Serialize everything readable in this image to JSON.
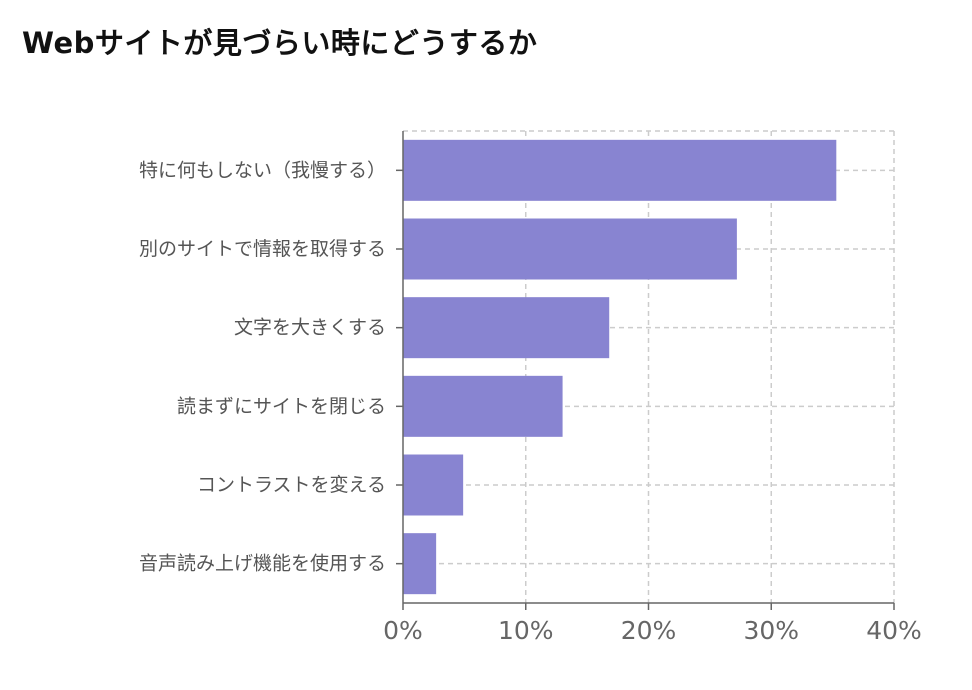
{
  "title": "Webサイトが見づらい時にどうするか",
  "chart_data": {
    "type": "bar",
    "orientation": "horizontal",
    "categories": [
      "特に何もしない（我慢する）",
      "別のサイトで情報を取得する",
      "文字を大きくする",
      "読まずにサイトを閉じる",
      "コントラストを変える",
      "音声読み上げ機能を使用する"
    ],
    "values": [
      35.3,
      27.2,
      16.8,
      13.0,
      4.9,
      2.7
    ],
    "xlim": [
      0,
      40
    ],
    "xticks": [
      0,
      10,
      20,
      30,
      40
    ],
    "xtick_labels": [
      "0%",
      "10%",
      "20%",
      "30%",
      "40%"
    ],
    "grid": true,
    "bar_color": "#8884d1"
  }
}
